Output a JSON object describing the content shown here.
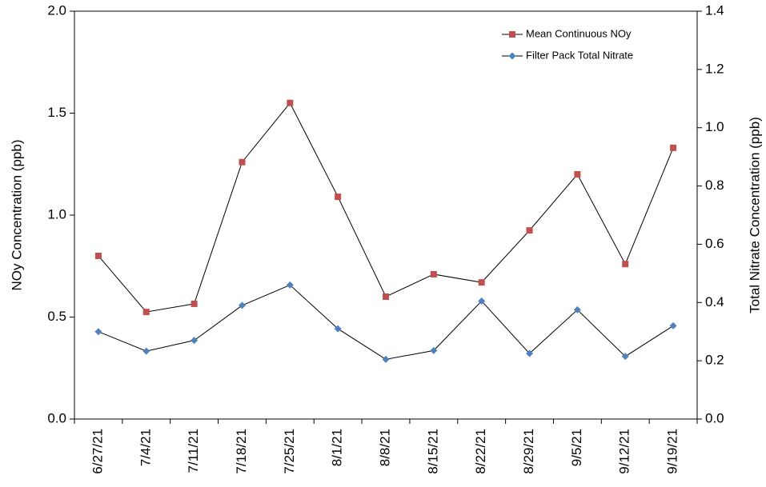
{
  "chart_data": {
    "type": "line",
    "y_label": "NOy Concentration (ppb)",
    "y2_label": "Total Nitrate Concentration (ppb)",
    "categories": [
      "6/27/21",
      "7/4/21",
      "7/11/21",
      "7/18/21",
      "7/25/21",
      "8/1/21",
      "8/8/21",
      "8/15/21",
      "8/22/21",
      "8/29/21",
      "9/5/21",
      "9/12/21",
      "9/19/21"
    ],
    "series": [
      {
        "name": "Mean Continuous NOy",
        "color": "#c0504d",
        "marker": "square",
        "axis": "y",
        "values": [
          0.8,
          0.525,
          0.565,
          1.26,
          1.55,
          1.09,
          0.6,
          0.71,
          0.67,
          0.925,
          1.2,
          0.76,
          1.33
        ]
      },
      {
        "name": "Filter Pack Total Nitrate",
        "color": "#4f81bd",
        "marker": "diamond",
        "axis": "y2",
        "values": [
          0.3,
          0.233,
          0.27,
          0.39,
          0.46,
          0.31,
          0.205,
          0.235,
          0.405,
          0.225,
          0.375,
          0.215,
          0.32
        ]
      }
    ],
    "ylim": [
      0,
      2.0
    ],
    "yticks": [
      {
        "value": 0,
        "label": "0.0"
      },
      0.5,
      {
        "value": 1.0,
        "label": "1.0"
      },
      1.5,
      {
        "value": 2.0,
        "label": "2.0"
      }
    ],
    "y2lim": [
      0,
      1.4
    ],
    "y2ticks": [
      {
        "value": 0,
        "label": "0.0"
      },
      0.2,
      0.4,
      0.6,
      0.8,
      {
        "value": 1.0,
        "label": "1.0"
      },
      1.2,
      1.4
    ],
    "legend": "top-right",
    "grid": false
  }
}
